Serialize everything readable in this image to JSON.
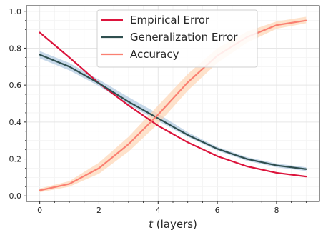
{
  "chart_data": {
    "type": "line",
    "xlabel_var": "t",
    "xlabel_rest": " (layers)",
    "ylabel": "",
    "xlim": [
      -0.45,
      9.45
    ],
    "ylim": [
      -0.03,
      1.03
    ],
    "xticks": [
      0,
      2,
      4,
      6,
      8
    ],
    "yticks": [
      0.0,
      0.2,
      0.4,
      0.6,
      0.8,
      1.0
    ],
    "grid": true,
    "legend_position": "top-center",
    "x": [
      0,
      1,
      2,
      3,
      4,
      5,
      6,
      7,
      8,
      9
    ],
    "series": [
      {
        "name": "Empirical Error",
        "color": "#dc143c",
        "values": [
          0.885,
          0.75,
          0.61,
          0.49,
          0.38,
          0.29,
          0.215,
          0.16,
          0.125,
          0.105
        ]
      },
      {
        "name": "Generalization Error",
        "color": "#2f4f4f",
        "band_color": "#aec7e0",
        "values": [
          0.765,
          0.7,
          0.61,
          0.51,
          0.42,
          0.33,
          0.255,
          0.2,
          0.165,
          0.145
        ],
        "band_lower": [
          0.745,
          0.68,
          0.595,
          0.495,
          0.405,
          0.32,
          0.245,
          0.19,
          0.155,
          0.135
        ],
        "band_upper": [
          0.785,
          0.72,
          0.63,
          0.535,
          0.445,
          0.345,
          0.265,
          0.21,
          0.175,
          0.155
        ]
      },
      {
        "name": "Accuracy",
        "color": "#fa8072",
        "band_color": "#fdd5b5",
        "values": [
          0.03,
          0.065,
          0.15,
          0.28,
          0.44,
          0.615,
          0.76,
          0.86,
          0.925,
          0.95
        ],
        "band_lower": [
          0.02,
          0.05,
          0.12,
          0.24,
          0.39,
          0.57,
          0.72,
          0.83,
          0.905,
          0.935
        ],
        "band_upper": [
          0.04,
          0.08,
          0.18,
          0.32,
          0.49,
          0.66,
          0.8,
          0.89,
          0.945,
          0.97
        ]
      }
    ]
  }
}
